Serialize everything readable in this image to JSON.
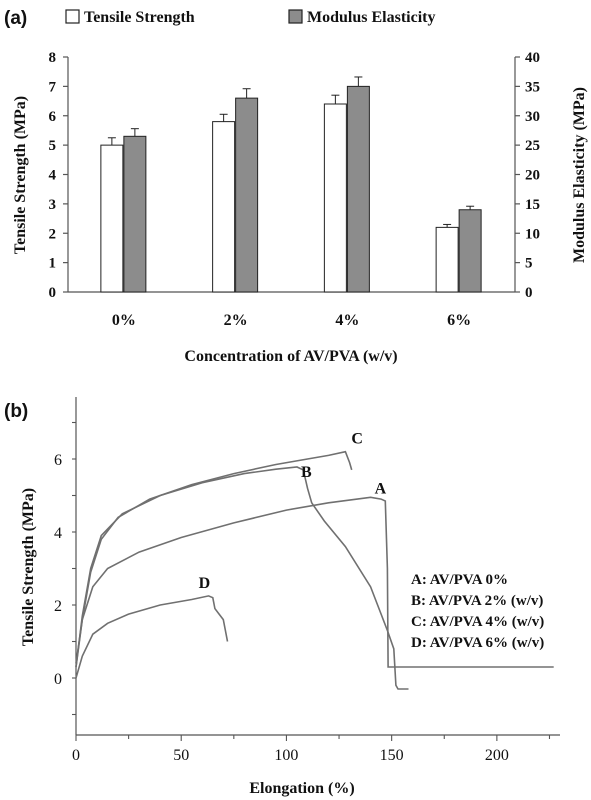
{
  "panel_a": {
    "panel_label": "(a)",
    "legend": {
      "tensile": "Tensile Strength",
      "modulus": "Modulus Elasticity"
    }
  },
  "panel_b": {
    "panel_label": "(b)",
    "legend": [
      "A: AV/PVA 0%",
      "B: AV/PVA 2% (w/v)",
      "C: AV/PVA 4% (w/v)",
      "D: AV/PVA 6% (w/v)"
    ]
  },
  "colors": {
    "axis": "#555555",
    "bar_modulus": "#8c8c8c",
    "curve": "#707070",
    "text": "#111111"
  },
  "chart_data": [
    {
      "type": "bar",
      "panel": "(a)",
      "categories": [
        "0%",
        "2%",
        "4%",
        "6%"
      ],
      "xlabel": "Concentration of AV/PVA (w/v)",
      "ylabel": "Tensile Strength (MPa)",
      "y2label": "Modulus Elasticity (MPa)",
      "ylim": [
        0,
        8
      ],
      "y2lim": [
        0,
        40
      ],
      "yticks": [
        0,
        1,
        2,
        3,
        4,
        5,
        6,
        7,
        8
      ],
      "y2ticks": [
        0,
        5,
        10,
        15,
        20,
        25,
        30,
        35,
        40
      ],
      "legend_position": "top",
      "grid": false,
      "series": [
        {
          "name": "Tensile Strength",
          "axis": "left",
          "values": [
            5.0,
            5.8,
            6.4,
            2.2
          ],
          "errors": [
            0.25,
            0.25,
            0.3,
            0.1
          ]
        },
        {
          "name": "Modulus Elasticity",
          "axis": "right",
          "values": [
            26.5,
            33.0,
            35.0,
            14.0
          ],
          "errors": [
            1.3,
            1.6,
            1.6,
            0.6
          ]
        }
      ]
    },
    {
      "type": "line",
      "panel": "(b)",
      "xlabel": "Elongation (%)",
      "ylabel": "Tensile Strength (MPa)",
      "xlim": [
        0,
        230
      ],
      "ylim": [
        -2,
        8
      ],
      "xticks": [
        0,
        50,
        100,
        150,
        200
      ],
      "yticks": [
        0,
        2,
        4,
        6
      ],
      "legend_position": "right",
      "grid": false,
      "series": [
        {
          "name": "A",
          "points": [
            [
              0,
              0.4
            ],
            [
              3,
              1.6
            ],
            [
              8,
              2.5
            ],
            [
              15,
              3.0
            ],
            [
              30,
              3.45
            ],
            [
              50,
              3.85
            ],
            [
              75,
              4.25
            ],
            [
              100,
              4.6
            ],
            [
              120,
              4.8
            ],
            [
              140,
              4.95
            ],
            [
              145,
              4.9
            ],
            [
              147,
              4.85
            ],
            [
              148,
              3.0
            ],
            [
              148.3,
              0.3
            ],
            [
              149,
              0.3
            ],
            [
              180,
              0.3
            ],
            [
              227,
              0.3
            ]
          ]
        },
        {
          "name": "B",
          "points": [
            [
              0,
              0.3
            ],
            [
              3,
              1.7
            ],
            [
              7,
              3.0
            ],
            [
              12,
              3.9
            ],
            [
              22,
              4.5
            ],
            [
              40,
              5.0
            ],
            [
              60,
              5.35
            ],
            [
              80,
              5.6
            ],
            [
              95,
              5.72
            ],
            [
              105,
              5.78
            ],
            [
              108,
              5.7
            ],
            [
              110,
              5.2
            ],
            [
              112,
              4.8
            ],
            [
              118,
              4.3
            ],
            [
              128,
              3.6
            ],
            [
              140,
              2.5
            ],
            [
              148,
              1.3
            ],
            [
              151,
              0.8
            ],
            [
              152,
              -0.2
            ],
            [
              153,
              -0.3
            ],
            [
              158,
              -0.3
            ]
          ]
        },
        {
          "name": "C",
          "points": [
            [
              0,
              0.3
            ],
            [
              3,
              1.6
            ],
            [
              7,
              2.9
            ],
            [
              12,
              3.8
            ],
            [
              20,
              4.4
            ],
            [
              35,
              4.9
            ],
            [
              55,
              5.3
            ],
            [
              75,
              5.6
            ],
            [
              95,
              5.85
            ],
            [
              110,
              6.0
            ],
            [
              120,
              6.1
            ],
            [
              128,
              6.2
            ],
            [
              130,
              5.9
            ],
            [
              131,
              5.7
            ]
          ]
        },
        {
          "name": "D",
          "points": [
            [
              0,
              0.0
            ],
            [
              3,
              0.6
            ],
            [
              8,
              1.2
            ],
            [
              15,
              1.5
            ],
            [
              25,
              1.75
            ],
            [
              40,
              2.0
            ],
            [
              55,
              2.15
            ],
            [
              63,
              2.25
            ],
            [
              65,
              2.2
            ],
            [
              66,
              1.9
            ],
            [
              68,
              1.75
            ],
            [
              70,
              1.6
            ],
            [
              71,
              1.3
            ],
            [
              72,
              1.0
            ]
          ]
        }
      ]
    }
  ]
}
